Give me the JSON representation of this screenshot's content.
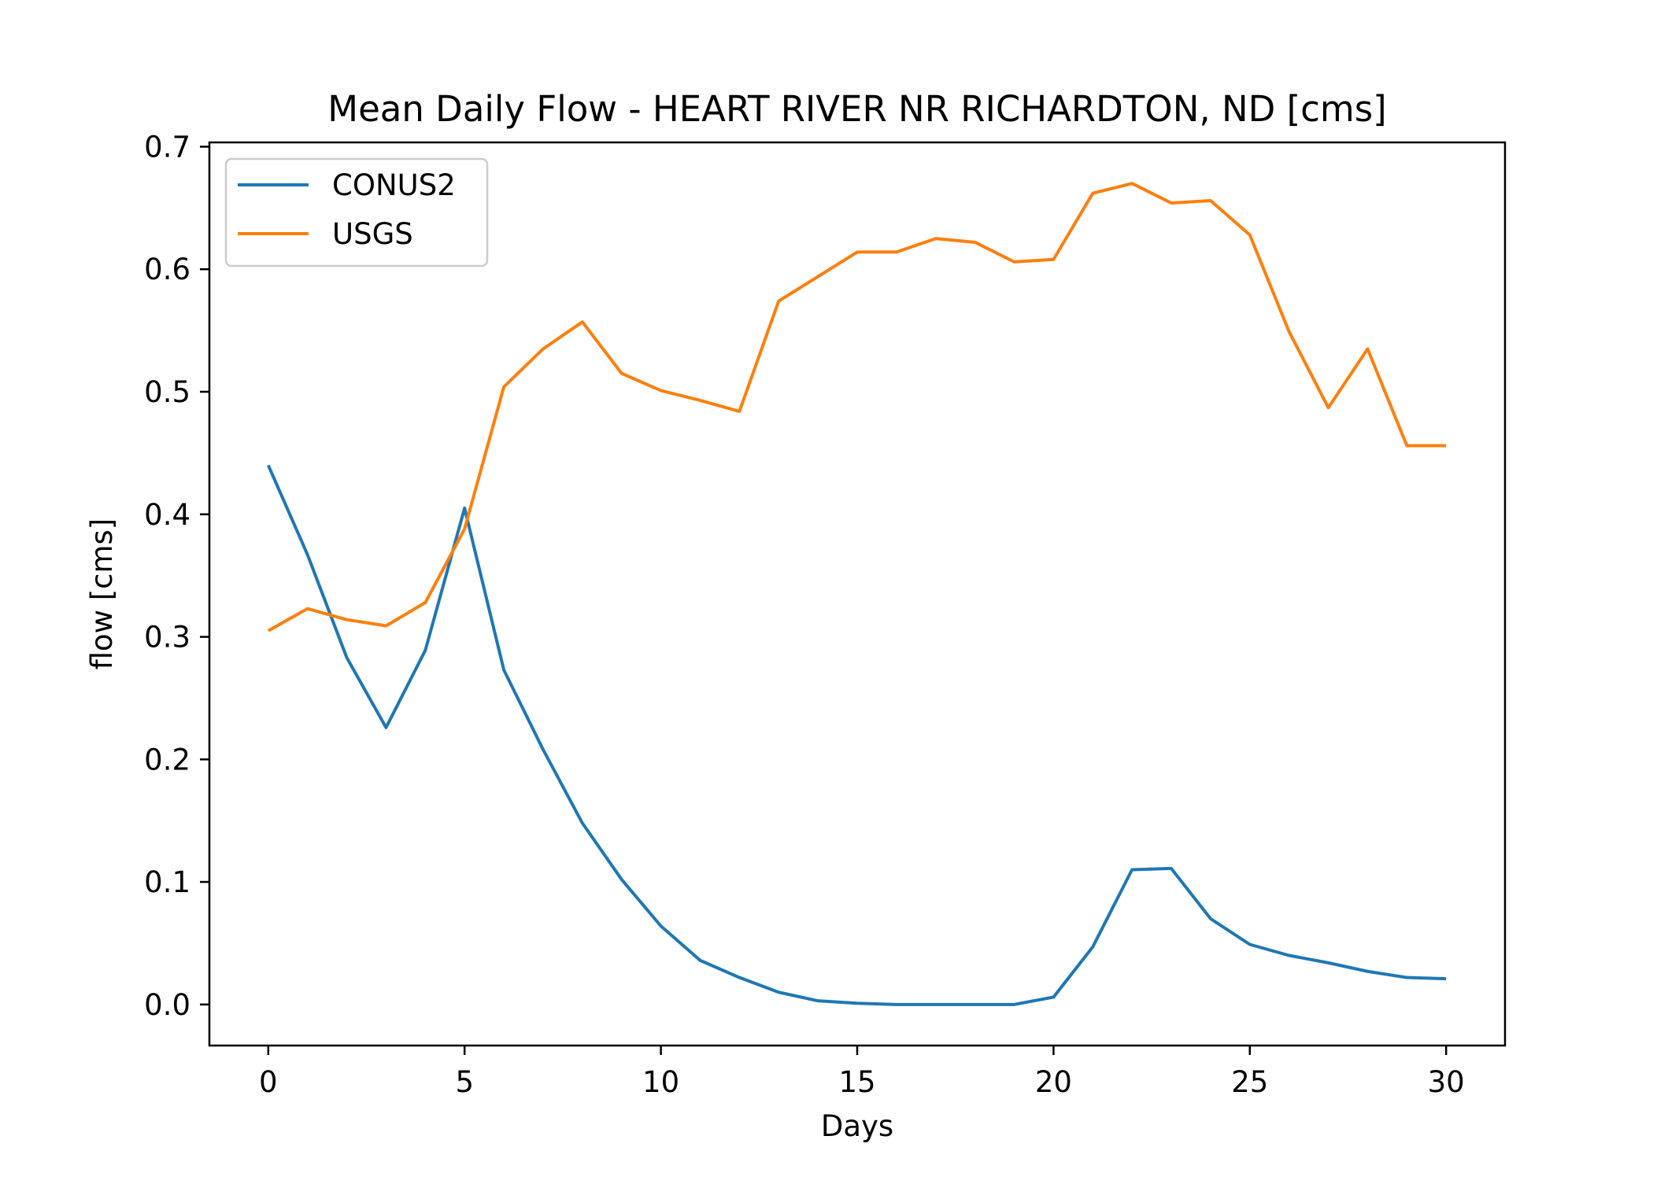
{
  "chart_data": {
    "type": "line",
    "title": "Mean Daily Flow - HEART RIVER NR RICHARDTON, ND [cms]",
    "xlabel": "Days",
    "ylabel": "flow [cms]",
    "xlim": [
      -1.5,
      31.5
    ],
    "ylim": [
      -0.0335,
      0.7035
    ],
    "xticks": [
      0,
      5,
      10,
      15,
      20,
      25,
      30
    ],
    "yticks": [
      0.0,
      0.1,
      0.2,
      0.3,
      0.4,
      0.5,
      0.6,
      0.7
    ],
    "xtick_labels": [
      "0",
      "5",
      "10",
      "15",
      "20",
      "25",
      "30"
    ],
    "ytick_labels": [
      "0.0",
      "0.1",
      "0.2",
      "0.3",
      "0.4",
      "0.5",
      "0.6",
      "0.7"
    ],
    "grid": false,
    "legend_position": "upper-left",
    "x": [
      0,
      1,
      2,
      3,
      4,
      5,
      6,
      7,
      8,
      9,
      10,
      11,
      12,
      13,
      14,
      15,
      16,
      17,
      18,
      19,
      20,
      21,
      22,
      23,
      24,
      25,
      26,
      27,
      28,
      29,
      30
    ],
    "series": [
      {
        "name": "CONUS2",
        "color": "#1f77b4",
        "values": [
          0.44,
          0.367,
          0.283,
          0.226,
          0.289,
          0.405,
          0.273,
          0.208,
          0.148,
          0.102,
          0.064,
          0.036,
          0.022,
          0.01,
          0.003,
          0.001,
          0.0,
          0.0,
          0.0,
          0.0,
          0.006,
          0.047,
          0.11,
          0.111,
          0.07,
          0.049,
          0.04,
          0.034,
          0.027,
          0.022,
          0.021
        ]
      },
      {
        "name": "USGS",
        "color": "#ff7f0e",
        "values": [
          0.305,
          0.323,
          0.314,
          0.309,
          0.328,
          0.388,
          0.504,
          0.535,
          0.557,
          0.515,
          0.501,
          0.493,
          0.484,
          0.574,
          0.594,
          0.614,
          0.614,
          0.625,
          0.622,
          0.606,
          0.608,
          0.662,
          0.67,
          0.654,
          0.656,
          0.628,
          0.549,
          0.487,
          0.535,
          0.456,
          0.456
        ]
      }
    ]
  }
}
